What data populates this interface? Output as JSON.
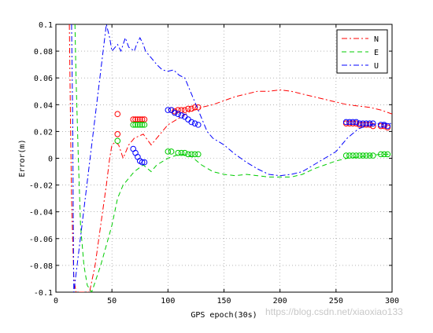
{
  "chart_data": {
    "type": "line",
    "title": "",
    "xlabel": "GPS epoch(30s)",
    "ylabel": "Error(m)",
    "xlim": [
      0,
      300
    ],
    "ylim": [
      -0.1,
      0.1
    ],
    "grid": true,
    "legend_position": "top-right",
    "xticks": [
      0,
      50,
      100,
      150,
      200,
      250,
      300
    ],
    "yticks": [
      -0.1,
      -0.08,
      -0.06,
      -0.04,
      -0.02,
      0,
      0.02,
      0.04,
      0.06,
      0.08,
      0.1
    ],
    "series": [
      {
        "name": "N",
        "color": "#ff0000",
        "style": "dash-dot",
        "line": [
          [
            12,
            0.1
          ],
          [
            13,
            0.03
          ],
          [
            14,
            -0.03
          ],
          [
            16,
            -0.09
          ],
          [
            18,
            -0.1
          ],
          [
            30,
            -0.1
          ],
          [
            35,
            -0.08
          ],
          [
            40,
            -0.05
          ],
          [
            45,
            -0.02
          ],
          [
            48,
            0.0
          ],
          [
            50,
            0.01
          ],
          [
            53,
            0.012
          ],
          [
            56,
            0.01
          ],
          [
            60,
            0.0
          ],
          [
            65,
            0.01
          ],
          [
            70,
            0.015
          ],
          [
            78,
            0.018
          ],
          [
            85,
            0.01
          ],
          [
            90,
            0.015
          ],
          [
            100,
            0.025
          ],
          [
            110,
            0.03
          ],
          [
            120,
            0.035
          ],
          [
            130,
            0.038
          ],
          [
            140,
            0.04
          ],
          [
            150,
            0.043
          ],
          [
            160,
            0.046
          ],
          [
            170,
            0.048
          ],
          [
            180,
            0.05
          ],
          [
            190,
            0.05
          ],
          [
            200,
            0.051
          ],
          [
            210,
            0.05
          ],
          [
            220,
            0.048
          ],
          [
            230,
            0.046
          ],
          [
            240,
            0.044
          ],
          [
            250,
            0.042
          ],
          [
            260,
            0.04
          ],
          [
            270,
            0.039
          ],
          [
            280,
            0.038
          ],
          [
            290,
            0.036
          ],
          [
            300,
            0.033
          ]
        ],
        "markers": [
          [
            55,
            0.033
          ],
          [
            55,
            0.018
          ],
          [
            69,
            0.029
          ],
          [
            71,
            0.029
          ],
          [
            73,
            0.029
          ],
          [
            75,
            0.029
          ],
          [
            77,
            0.029
          ],
          [
            79,
            0.029
          ],
          [
            103,
            0.036
          ],
          [
            106,
            0.035
          ],
          [
            109,
            0.036
          ],
          [
            112,
            0.036
          ],
          [
            115,
            0.036
          ],
          [
            118,
            0.037
          ],
          [
            121,
            0.037
          ],
          [
            124,
            0.038
          ],
          [
            127,
            0.038
          ],
          [
            259,
            0.026
          ],
          [
            262,
            0.026
          ],
          [
            265,
            0.026
          ],
          [
            268,
            0.026
          ],
          [
            271,
            0.025
          ],
          [
            274,
            0.025
          ],
          [
            277,
            0.025
          ],
          [
            280,
            0.025
          ],
          [
            283,
            0.024
          ],
          [
            290,
            0.024
          ],
          [
            293,
            0.024
          ],
          [
            296,
            0.023
          ]
        ]
      },
      {
        "name": "E",
        "color": "#00cc00",
        "style": "dash",
        "line": [
          [
            17,
            0.1
          ],
          [
            18,
            0.06
          ],
          [
            20,
            0.0
          ],
          [
            22,
            -0.05
          ],
          [
            25,
            -0.08
          ],
          [
            28,
            -0.095
          ],
          [
            32,
            -0.1
          ],
          [
            40,
            -0.08
          ],
          [
            45,
            -0.065
          ],
          [
            50,
            -0.05
          ],
          [
            55,
            -0.03
          ],
          [
            60,
            -0.02
          ],
          [
            65,
            -0.015
          ],
          [
            70,
            -0.01
          ],
          [
            78,
            -0.005
          ],
          [
            85,
            -0.01
          ],
          [
            90,
            -0.005
          ],
          [
            100,
            0.0
          ],
          [
            110,
            0.003
          ],
          [
            120,
            0.002
          ],
          [
            130,
            -0.005
          ],
          [
            140,
            -0.01
          ],
          [
            150,
            -0.012
          ],
          [
            160,
            -0.013
          ],
          [
            170,
            -0.012
          ],
          [
            180,
            -0.013
          ],
          [
            190,
            -0.014
          ],
          [
            200,
            -0.014
          ],
          [
            210,
            -0.014
          ],
          [
            220,
            -0.012
          ],
          [
            230,
            -0.008
          ],
          [
            240,
            -0.005
          ],
          [
            250,
            -0.002
          ],
          [
            260,
            0.0
          ],
          [
            270,
            0.001
          ],
          [
            280,
            0.002
          ],
          [
            290,
            0.003
          ],
          [
            300,
            0.003
          ]
        ],
        "markers": [
          [
            55,
            0.013
          ],
          [
            69,
            0.025
          ],
          [
            71,
            0.025
          ],
          [
            73,
            0.025
          ],
          [
            75,
            0.025
          ],
          [
            77,
            0.025
          ],
          [
            79,
            0.025
          ],
          [
            100,
            0.005
          ],
          [
            103,
            0.005
          ],
          [
            109,
            0.004
          ],
          [
            112,
            0.004
          ],
          [
            115,
            0.004
          ],
          [
            118,
            0.003
          ],
          [
            121,
            0.003
          ],
          [
            124,
            0.003
          ],
          [
            127,
            0.003
          ],
          [
            259,
            0.002
          ],
          [
            262,
            0.002
          ],
          [
            265,
            0.002
          ],
          [
            268,
            0.002
          ],
          [
            271,
            0.002
          ],
          [
            274,
            0.002
          ],
          [
            277,
            0.002
          ],
          [
            280,
            0.002
          ],
          [
            283,
            0.002
          ],
          [
            290,
            0.003
          ],
          [
            293,
            0.003
          ],
          [
            296,
            0.003
          ]
        ]
      },
      {
        "name": "U",
        "color": "#0000ff",
        "style": "dash-dot",
        "line": [
          [
            14,
            0.1
          ],
          [
            15,
            0.03
          ],
          [
            15.5,
            -0.05
          ],
          [
            16,
            -0.1
          ],
          [
            45,
            0.1
          ],
          [
            48,
            0.09
          ],
          [
            50,
            0.08
          ],
          [
            55,
            0.085
          ],
          [
            58,
            0.08
          ],
          [
            62,
            0.09
          ],
          [
            65,
            0.083
          ],
          [
            70,
            0.08
          ],
          [
            72,
            0.085
          ],
          [
            75,
            0.09
          ],
          [
            78,
            0.085
          ],
          [
            80,
            0.08
          ],
          [
            85,
            0.075
          ],
          [
            90,
            0.07
          ],
          [
            95,
            0.066
          ],
          [
            100,
            0.065
          ],
          [
            105,
            0.066
          ],
          [
            110,
            0.062
          ],
          [
            115,
            0.06
          ],
          [
            120,
            0.05
          ],
          [
            125,
            0.04
          ],
          [
            130,
            0.03
          ],
          [
            135,
            0.02
          ],
          [
            140,
            0.015
          ],
          [
            150,
            0.01
          ],
          [
            160,
            0.003
          ],
          [
            170,
            -0.003
          ],
          [
            180,
            -0.008
          ],
          [
            190,
            -0.012
          ],
          [
            200,
            -0.013
          ],
          [
            210,
            -0.012
          ],
          [
            220,
            -0.01
          ],
          [
            230,
            -0.005
          ],
          [
            240,
            0.0
          ],
          [
            250,
            0.005
          ],
          [
            260,
            0.015
          ],
          [
            270,
            0.022
          ],
          [
            280,
            0.025
          ],
          [
            290,
            0.026
          ],
          [
            300,
            0.026
          ]
        ],
        "markers": [
          [
            69,
            0.007
          ],
          [
            71,
            0.004
          ],
          [
            73,
            0.001
          ],
          [
            75,
            -0.002
          ],
          [
            77,
            -0.003
          ],
          [
            79,
            -0.003
          ],
          [
            100,
            0.036
          ],
          [
            103,
            0.036
          ],
          [
            106,
            0.034
          ],
          [
            109,
            0.033
          ],
          [
            112,
            0.032
          ],
          [
            115,
            0.031
          ],
          [
            118,
            0.029
          ],
          [
            121,
            0.027
          ],
          [
            124,
            0.026
          ],
          [
            127,
            0.025
          ],
          [
            259,
            0.027
          ],
          [
            262,
            0.027
          ],
          [
            265,
            0.027
          ],
          [
            268,
            0.027
          ],
          [
            271,
            0.026
          ],
          [
            274,
            0.026
          ],
          [
            277,
            0.026
          ],
          [
            280,
            0.026
          ],
          [
            283,
            0.026
          ],
          [
            290,
            0.025
          ],
          [
            293,
            0.025
          ],
          [
            296,
            0.024
          ]
        ]
      }
    ]
  },
  "watermark": "https://blog.csdn.net/xiaoxiao133"
}
